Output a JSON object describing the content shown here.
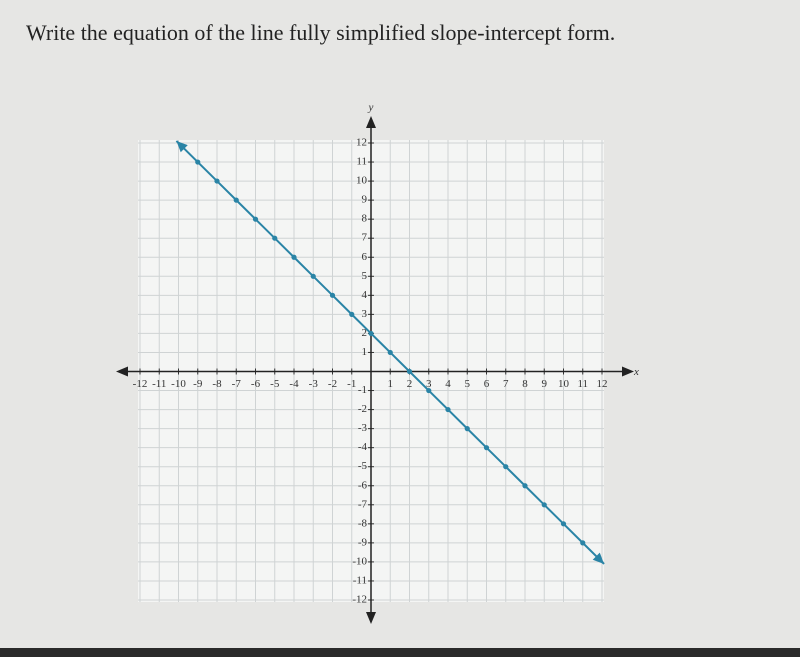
{
  "question": "Write the equation of the line fully simplified slope-intercept form.",
  "chart_data": {
    "type": "line",
    "x_label": "x",
    "y_label": "y",
    "x": [
      -9,
      -8,
      -7,
      -6,
      -5,
      -4,
      -3,
      -2,
      -1,
      0,
      1,
      2,
      3,
      4,
      5,
      6,
      7,
      8,
      9,
      10,
      11
    ],
    "series": [
      {
        "color": "#2a84a6",
        "values": [
          11,
          10,
          9,
          8,
          7,
          6,
          5,
          4,
          3,
          2,
          1,
          0,
          -1,
          -2,
          -3,
          -4,
          -5,
          -6,
          -7,
          -8,
          -9
        ]
      }
    ],
    "xlim": [
      -12,
      12
    ],
    "ylim": [
      -12,
      12
    ],
    "xticks": [
      -12,
      -11,
      -10,
      -9,
      -8,
      -7,
      -6,
      -5,
      -4,
      -3,
      -2,
      -1,
      1,
      2,
      3,
      4,
      5,
      6,
      7,
      8,
      9,
      10,
      11,
      12
    ],
    "yticks": [
      -12,
      -11,
      -10,
      -9,
      -8,
      -7,
      -6,
      -5,
      -4,
      -3,
      -2,
      -1,
      1,
      2,
      3,
      4,
      5,
      6,
      7,
      8,
      9,
      10,
      11,
      12
    ],
    "grid": true
  }
}
